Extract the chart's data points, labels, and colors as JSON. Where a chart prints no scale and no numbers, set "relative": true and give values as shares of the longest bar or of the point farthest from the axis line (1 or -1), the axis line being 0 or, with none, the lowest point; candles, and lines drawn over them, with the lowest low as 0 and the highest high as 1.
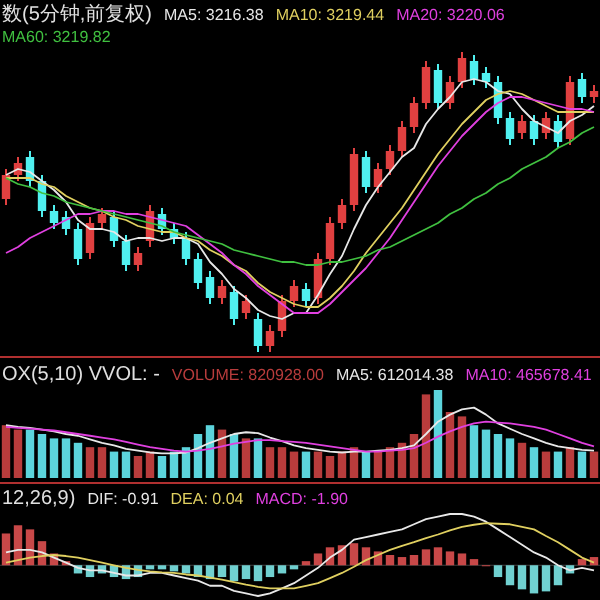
{
  "chart_data": [
    {
      "type": "candlestick",
      "title": "数(5分钟,前复权)",
      "relative": true,
      "legend": "top",
      "categories": [
        null,
        null,
        null,
        null,
        null,
        null,
        null,
        null,
        null,
        null,
        null,
        null,
        null,
        null,
        null,
        null,
        null,
        null,
        null,
        null,
        null,
        null,
        null,
        null,
        null,
        null,
        null,
        null,
        null,
        null,
        null,
        null,
        null,
        null,
        null,
        null,
        null,
        null,
        null,
        null,
        null,
        null,
        null,
        null,
        null,
        null,
        null,
        null,
        null,
        null
      ],
      "ohlc": [
        [
          0.51,
          0.61,
          0.49,
          0.59
        ],
        [
          0.59,
          0.65,
          0.57,
          0.63
        ],
        [
          0.65,
          0.67,
          0.55,
          0.57
        ],
        [
          0.57,
          0.59,
          0.45,
          0.47
        ],
        [
          0.47,
          0.49,
          0.41,
          0.43
        ],
        [
          0.45,
          0.47,
          0.39,
          0.41
        ],
        [
          0.41,
          0.43,
          0.29,
          0.31
        ],
        [
          0.33,
          0.45,
          0.31,
          0.43
        ],
        [
          0.43,
          0.48,
          0.41,
          0.46
        ],
        [
          0.45,
          0.47,
          0.35,
          0.37
        ],
        [
          0.37,
          0.39,
          0.27,
          0.29
        ],
        [
          0.29,
          0.35,
          0.27,
          0.33
        ],
        [
          0.37,
          0.49,
          0.35,
          0.47
        ],
        [
          0.46,
          0.48,
          0.39,
          0.41
        ],
        [
          0.41,
          0.43,
          0.36,
          0.38
        ],
        [
          0.38,
          0.4,
          0.29,
          0.31
        ],
        [
          0.31,
          0.33,
          0.21,
          0.23
        ],
        [
          0.25,
          0.27,
          0.16,
          0.18
        ],
        [
          0.18,
          0.24,
          0.16,
          0.22
        ],
        [
          0.2,
          0.22,
          0.09,
          0.11
        ],
        [
          0.13,
          0.19,
          0.11,
          0.17
        ],
        [
          0.11,
          0.13,
          0,
          0.02
        ],
        [
          0.02,
          0.09,
          0,
          0.07
        ],
        [
          0.07,
          0.19,
          0.05,
          0.17
        ],
        [
          0.17,
          0.24,
          0.15,
          0.22
        ],
        [
          0.21,
          0.23,
          0.15,
          0.17
        ],
        [
          0.18,
          0.33,
          0.16,
          0.31
        ],
        [
          0.31,
          0.45,
          0.29,
          0.43
        ],
        [
          0.43,
          0.51,
          0.41,
          0.49
        ],
        [
          0.49,
          0.68,
          0.47,
          0.66
        ],
        [
          0.65,
          0.67,
          0.53,
          0.55
        ],
        [
          0.55,
          0.63,
          0.53,
          0.61
        ],
        [
          0.61,
          0.69,
          0.59,
          0.67
        ],
        [
          0.67,
          0.77,
          0.65,
          0.75
        ],
        [
          0.75,
          0.85,
          0.73,
          0.83
        ],
        [
          0.83,
          0.97,
          0.81,
          0.95
        ],
        [
          0.94,
          0.96,
          0.81,
          0.83
        ],
        [
          0.83,
          0.92,
          0.81,
          0.9
        ],
        [
          0.9,
          1,
          0.88,
          0.98
        ],
        [
          0.97,
          0.99,
          0.89,
          0.91
        ],
        [
          0.93,
          0.95,
          0.88,
          0.9
        ],
        [
          0.9,
          0.92,
          0.76,
          0.78
        ],
        [
          0.78,
          0.8,
          0.69,
          0.71
        ],
        [
          0.73,
          0.79,
          0.71,
          0.77
        ],
        [
          0.77,
          0.79,
          0.69,
          0.71
        ],
        [
          0.73,
          0.8,
          0.71,
          0.78
        ],
        [
          0.77,
          0.79,
          0.68,
          0.7
        ],
        [
          0.71,
          0.92,
          0.69,
          0.9
        ],
        [
          0.91,
          0.93,
          0.83,
          0.85
        ],
        [
          0.85,
          0.89,
          0.83,
          0.87
        ]
      ],
      "colors": [
        "#e04040",
        "#e04040",
        "#50f0f0",
        "#50f0f0",
        "#50f0f0",
        "#50f0f0",
        "#50f0f0",
        "#e04040",
        "#e04040",
        "#50f0f0",
        "#50f0f0",
        "#e04040",
        "#e04040",
        "#50f0f0",
        "#50f0f0",
        "#50f0f0",
        "#50f0f0",
        "#50f0f0",
        "#e04040",
        "#50f0f0",
        "#e04040",
        "#50f0f0",
        "#e04040",
        "#e04040",
        "#e04040",
        "#50f0f0",
        "#e04040",
        "#e04040",
        "#e04040",
        "#e04040",
        "#50f0f0",
        "#e04040",
        "#e04040",
        "#e04040",
        "#e04040",
        "#e04040",
        "#50f0f0",
        "#e04040",
        "#e04040",
        "#50f0f0",
        "#50f0f0",
        "#50f0f0",
        "#50f0f0",
        "#e04040",
        "#50f0f0",
        "#e04040",
        "#50f0f0",
        "#e04040",
        "#50f0f0",
        "#e04040"
      ],
      "series": [
        {
          "name": "MA5: 3216.38",
          "type": "line",
          "color": "#e8e8e8",
          "values": [
            0.59,
            0.61,
            0.6,
            0.57,
            0.54,
            0.5,
            0.44,
            0.41,
            0.41,
            0.4,
            0.37,
            0.38,
            0.38,
            0.37,
            0.38,
            0.38,
            0.36,
            0.3,
            0.26,
            0.21,
            0.18,
            0.14,
            0.12,
            0.11,
            0.13,
            0.13,
            0.19,
            0.26,
            0.32,
            0.41,
            0.49,
            0.55,
            0.6,
            0.65,
            0.68,
            0.76,
            0.81,
            0.85,
            0.9,
            0.91,
            0.9,
            0.87,
            0.86,
            0.81,
            0.77,
            0.75,
            0.73,
            0.77,
            0.79,
            0.82
          ]
        },
        {
          "name": "MA10: 3219.44",
          "type": "line",
          "color": "#e0d060",
          "values": [
            0.58,
            0.58,
            0.58,
            0.56,
            0.55,
            0.52,
            0.5,
            0.48,
            0.47,
            0.45,
            0.44,
            0.42,
            0.41,
            0.4,
            0.4,
            0.38,
            0.37,
            0.34,
            0.32,
            0.29,
            0.27,
            0.23,
            0.2,
            0.18,
            0.16,
            0.15,
            0.15,
            0.18,
            0.22,
            0.27,
            0.33,
            0.38,
            0.43,
            0.48,
            0.54,
            0.6,
            0.66,
            0.71,
            0.76,
            0.8,
            0.84,
            0.86,
            0.87,
            0.86,
            0.84,
            0.82,
            0.8,
            0.8,
            0.8,
            0.8
          ]
        },
        {
          "name": "MA20: 3220.06",
          "type": "line",
          "color": "#e040e0",
          "values": [
            0.33,
            0.35,
            0.38,
            0.4,
            0.42,
            0.44,
            0.46,
            0.46,
            0.47,
            0.47,
            0.46,
            0.46,
            0.45,
            0.44,
            0.43,
            0.42,
            0.39,
            0.36,
            0.33,
            0.29,
            0.26,
            0.22,
            0.19,
            0.16,
            0.13,
            0.13,
            0.13,
            0.16,
            0.2,
            0.24,
            0.28,
            0.33,
            0.38,
            0.44,
            0.5,
            0.56,
            0.62,
            0.67,
            0.72,
            0.76,
            0.8,
            0.83,
            0.85,
            0.85,
            0.84,
            0.83,
            0.82,
            0.81,
            0.81,
            0.8
          ]
        },
        {
          "name": "MA60: 3219.82",
          "type": "line",
          "color": "#40c040",
          "values": [
            0.58,
            0.56,
            0.55,
            0.53,
            0.52,
            0.5,
            0.49,
            0.48,
            0.47,
            0.46,
            0.45,
            0.44,
            0.43,
            0.42,
            0.4,
            0.39,
            0.38,
            0.37,
            0.36,
            0.34,
            0.33,
            0.32,
            0.31,
            0.3,
            0.3,
            0.29,
            0.29,
            0.3,
            0.3,
            0.31,
            0.32,
            0.34,
            0.35,
            0.37,
            0.39,
            0.41,
            0.43,
            0.46,
            0.48,
            0.51,
            0.53,
            0.56,
            0.58,
            0.61,
            0.63,
            0.65,
            0.68,
            0.7,
            0.73,
            0.75
          ]
        }
      ]
    },
    {
      "type": "bar",
      "title": "OX(5,10)  VVOL: -",
      "relative": true,
      "legend": "top",
      "categories": [
        null,
        null,
        null,
        null,
        null,
        null,
        null,
        null,
        null,
        null,
        null,
        null,
        null,
        null,
        null,
        null,
        null,
        null,
        null,
        null,
        null,
        null,
        null,
        null,
        null,
        null,
        null,
        null,
        null,
        null,
        null,
        null,
        null,
        null,
        null,
        null,
        null,
        null,
        null,
        null,
        null,
        null,
        null,
        null,
        null,
        null,
        null,
        null,
        null,
        null
      ],
      "series": [
        {
          "name": "VOLUME: 820928.00",
          "color": "#b83c3c",
          "values": [
            0.6,
            0.55,
            0.55,
            0.5,
            0.45,
            0.45,
            0.4,
            0.35,
            0.35,
            0.3,
            0.3,
            0.25,
            0.3,
            0.25,
            0.3,
            0.35,
            0.5,
            0.6,
            0.55,
            0.5,
            0.45,
            0.45,
            0.35,
            0.35,
            0.3,
            0.3,
            0.3,
            0.25,
            0.3,
            0.35,
            0.3,
            0.3,
            0.35,
            0.4,
            0.5,
            0.95,
            1.0,
            0.75,
            0.7,
            0.6,
            0.55,
            0.5,
            0.45,
            0.4,
            0.35,
            0.3,
            0.3,
            0.35,
            0.3,
            0.3
          ],
          "colors": [
            "#b83c3c",
            "#b83c3c",
            "#5cd4dc",
            "#5cd4dc",
            "#5cd4dc",
            "#5cd4dc",
            "#5cd4dc",
            "#b83c3c",
            "#b83c3c",
            "#5cd4dc",
            "#5cd4dc",
            "#b83c3c",
            "#b83c3c",
            "#5cd4dc",
            "#5cd4dc",
            "#5cd4dc",
            "#5cd4dc",
            "#5cd4dc",
            "#b83c3c",
            "#5cd4dc",
            "#b83c3c",
            "#5cd4dc",
            "#b83c3c",
            "#b83c3c",
            "#b83c3c",
            "#5cd4dc",
            "#b83c3c",
            "#b83c3c",
            "#b83c3c",
            "#b83c3c",
            "#5cd4dc",
            "#b83c3c",
            "#b83c3c",
            "#b83c3c",
            "#b83c3c",
            "#b83c3c",
            "#5cd4dc",
            "#b83c3c",
            "#b83c3c",
            "#5cd4dc",
            "#5cd4dc",
            "#5cd4dc",
            "#5cd4dc",
            "#b83c3c",
            "#5cd4dc",
            "#b83c3c",
            "#5cd4dc",
            "#b83c3c",
            "#5cd4dc",
            "#b83c3c"
          ]
        },
        {
          "name": "MA5: 612014.38",
          "type": "line",
          "color": "#e8e8e8",
          "values": [
            0.6,
            0.58,
            0.57,
            0.55,
            0.53,
            0.5,
            0.48,
            0.44,
            0.4,
            0.37,
            0.33,
            0.31,
            0.29,
            0.28,
            0.28,
            0.29,
            0.34,
            0.4,
            0.45,
            0.5,
            0.52,
            0.51,
            0.46,
            0.42,
            0.37,
            0.34,
            0.32,
            0.3,
            0.29,
            0.3,
            0.3,
            0.31,
            0.32,
            0.34,
            0.37,
            0.5,
            0.64,
            0.72,
            0.78,
            0.8,
            0.72,
            0.62,
            0.56,
            0.5,
            0.45,
            0.4,
            0.36,
            0.34,
            0.32,
            0.31
          ]
        },
        {
          "name": "MA10: 465678.41",
          "type": "line",
          "color": "#e040e0",
          "values": [
            0.58,
            0.57,
            0.56,
            0.55,
            0.54,
            0.52,
            0.5,
            0.48,
            0.46,
            0.44,
            0.41,
            0.38,
            0.35,
            0.33,
            0.31,
            0.3,
            0.31,
            0.33,
            0.36,
            0.39,
            0.41,
            0.43,
            0.43,
            0.42,
            0.41,
            0.4,
            0.38,
            0.36,
            0.34,
            0.32,
            0.3,
            0.3,
            0.31,
            0.32,
            0.34,
            0.4,
            0.47,
            0.53,
            0.58,
            0.62,
            0.64,
            0.63,
            0.62,
            0.6,
            0.58,
            0.55,
            0.5,
            0.45,
            0.4,
            0.36
          ]
        }
      ]
    },
    {
      "type": "bar",
      "title": "12,26,9)",
      "relative": true,
      "legend": "top",
      "categories": [
        null,
        null,
        null,
        null,
        null,
        null,
        null,
        null,
        null,
        null,
        null,
        null,
        null,
        null,
        null,
        null,
        null,
        null,
        null,
        null,
        null,
        null,
        null,
        null,
        null,
        null,
        null,
        null,
        null,
        null,
        null,
        null,
        null,
        null,
        null,
        null,
        null,
        null,
        null,
        null,
        null,
        null,
        null,
        null,
        null,
        null,
        null,
        null,
        null,
        null
      ],
      "series": [
        {
          "name": "DIF: -0.91",
          "type": "line",
          "color": "#e8e8e8",
          "values": [
            0.25,
            0.3,
            0.3,
            0.25,
            0.15,
            0.05,
            -0.05,
            -0.1,
            -0.1,
            -0.15,
            -0.2,
            -0.2,
            -0.15,
            -0.15,
            -0.2,
            -0.25,
            -0.3,
            -0.4,
            -0.4,
            -0.5,
            -0.55,
            -0.6,
            -0.55,
            -0.45,
            -0.35,
            -0.2,
            -0.05,
            0.15,
            0.3,
            0.5,
            0.55,
            0.6,
            0.65,
            0.7,
            0.8,
            0.9,
            0.95,
            1.0,
            1.0,
            0.95,
            0.85,
            0.7,
            0.55,
            0.4,
            0.25,
            0.15,
            0,
            -0.1,
            -0.05,
            -0.1
          ]
        },
        {
          "name": "DEA: 0.04",
          "type": "line",
          "color": "#e0d060",
          "values": [
            0.05,
            0.1,
            0.15,
            0.18,
            0.2,
            0.18,
            0.15,
            0.1,
            0.05,
            0,
            -0.05,
            -0.09,
            -0.12,
            -0.14,
            -0.15,
            -0.18,
            -0.2,
            -0.24,
            -0.28,
            -0.33,
            -0.38,
            -0.42,
            -0.45,
            -0.45,
            -0.45,
            -0.4,
            -0.35,
            -0.25,
            -0.15,
            -0.03,
            0.1,
            0.2,
            0.3,
            0.38,
            0.45,
            0.53,
            0.6,
            0.68,
            0.75,
            0.79,
            0.82,
            0.81,
            0.8,
            0.75,
            0.7,
            0.57,
            0.45,
            0.3,
            0.15,
            0.05
          ]
        },
        {
          "name": "MACD: -1.90",
          "color": "#e040e0",
          "values": [
            0.62,
            0.78,
            0.7,
            0.47,
            0.23,
            0.08,
            -0.16,
            -0.23,
            -0.16,
            -0.23,
            -0.27,
            -0.23,
            -0.08,
            -0.08,
            -0.12,
            -0.16,
            -0.23,
            -0.27,
            -0.23,
            -0.31,
            -0.27,
            -0.31,
            -0.23,
            -0.16,
            -0.08,
            0.08,
            0.23,
            0.35,
            0.39,
            0.43,
            0.35,
            0.27,
            0.2,
            0.16,
            0.2,
            0.31,
            0.35,
            0.27,
            0.23,
            0.12,
            0,
            -0.23,
            -0.39,
            -0.47,
            -0.55,
            -0.51,
            -0.39,
            -0.16,
            0.12,
            0.16
          ],
          "colors": [
            "#c84848",
            "#c84848",
            "#c84848",
            "#c84848",
            "#c84848",
            "#c84848",
            "#70d0d0",
            "#70d0d0",
            "#70d0d0",
            "#70d0d0",
            "#70d0d0",
            "#70d0d0",
            "#70d0d0",
            "#70d0d0",
            "#70d0d0",
            "#70d0d0",
            "#70d0d0",
            "#70d0d0",
            "#70d0d0",
            "#70d0d0",
            "#70d0d0",
            "#70d0d0",
            "#70d0d0",
            "#70d0d0",
            "#70d0d0",
            "#c84848",
            "#c84848",
            "#c84848",
            "#c84848",
            "#c84848",
            "#c84848",
            "#c84848",
            "#c84848",
            "#c84848",
            "#c84848",
            "#c84848",
            "#c84848",
            "#c84848",
            "#c84848",
            "#c84848",
            "#c84848",
            "#70d0d0",
            "#70d0d0",
            "#70d0d0",
            "#70d0d0",
            "#70d0d0",
            "#70d0d0",
            "#70d0d0",
            "#c84848",
            "#c84848"
          ]
        }
      ]
    }
  ]
}
